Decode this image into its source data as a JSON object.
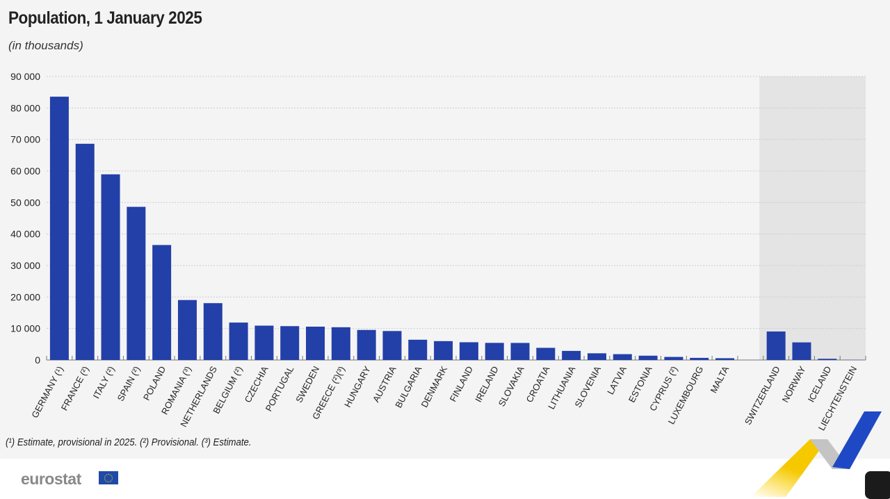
{
  "title": "Population, 1 January 2025",
  "subtitle": "(in thousands)",
  "footnote": "(¹) Estimate, provisional in 2025. (²) Provisional. (³) Estimate.",
  "logo": "eurostat",
  "chart_data": {
    "type": "bar",
    "title": "Population, 1 January 2025",
    "ylabel": "(in thousands)",
    "ylim": [
      0,
      90000
    ],
    "yticks": [
      "0",
      "10 000",
      "20 000",
      "30 000",
      "40 000",
      "50 000",
      "60 000",
      "70 000",
      "80 000",
      "90 000"
    ],
    "grid": true,
    "bar_color": "#2340a8",
    "shaded_group_color": "#e4e4e4",
    "categories": [
      "GERMANY (¹)",
      "FRANCE (²)",
      "ITALY (²)",
      "SPAIN (²)",
      "POLAND",
      "ROMANIA (³)",
      "NETHERLANDS",
      "BELGIUM (²)",
      "CZECHIA",
      "PORTUGAL",
      "SWEDEN",
      "GREECE (²)(³)",
      "HUNGARY",
      "AUSTRIA",
      "BULGARIA",
      "DENMARK",
      "FINLAND",
      "IRELAND",
      "SLOVAKIA",
      "CROATIA",
      "LITHUANIA",
      "SLOVENIA",
      "LATVIA",
      "ESTONIA",
      "CYPRUS (²)",
      "LUXEMBOURG",
      "MALTA",
      "",
      "SWITZERLAND",
      "NORWAY",
      "ICELAND",
      "LIECHTENSTEIN"
    ],
    "values": [
      83577,
      68635,
      58934,
      48620,
      36497,
      19036,
      18045,
      11884,
      10910,
      10750,
      10588,
      10400,
      9540,
      9198,
      6437,
      5990,
      5636,
      5440,
      5420,
      3866,
      2890,
      2130,
      1857,
      1370,
      980,
      682,
      574,
      null,
      9052,
      5595,
      390,
      40
    ]
  }
}
